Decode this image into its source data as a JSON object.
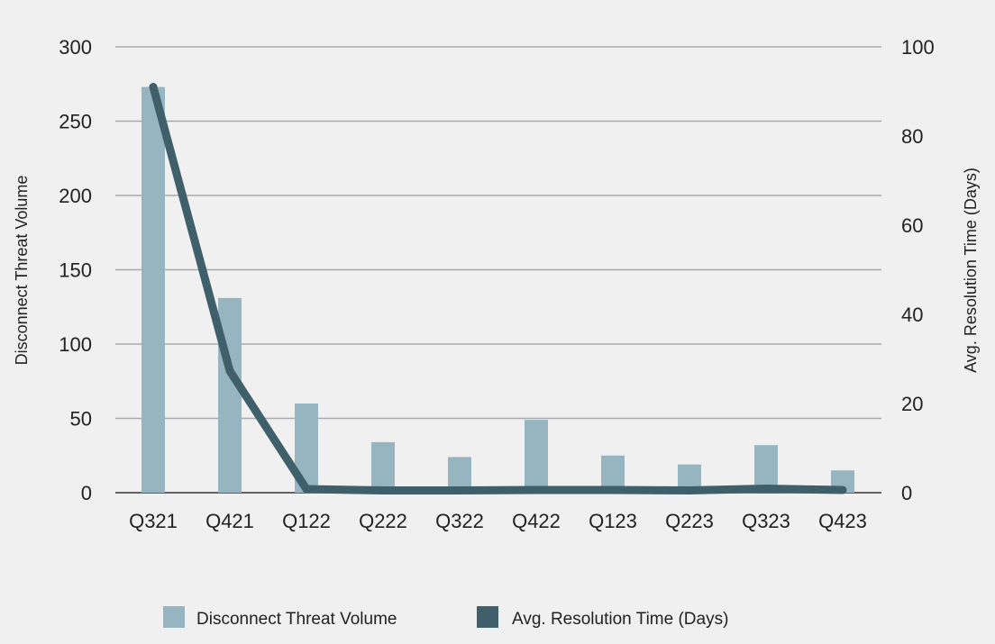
{
  "chart_data": {
    "type": "bar+line",
    "categories": [
      "Q321",
      "Q421",
      "Q122",
      "Q222",
      "Q322",
      "Q422",
      "Q123",
      "Q223",
      "Q323",
      "Q423"
    ],
    "series": [
      {
        "name": "Disconnect Threat Volume",
        "type": "bar",
        "axis": "left",
        "color": "#97b5c0",
        "values": [
          273,
          131,
          60,
          34,
          24,
          49,
          25,
          19,
          32,
          15
        ]
      },
      {
        "name": "Avg. Resolution Time (Days)",
        "type": "line",
        "axis": "right",
        "color": "#3f5f6a",
        "values": [
          91,
          27.3,
          0.8,
          0.5,
          0.5,
          0.6,
          0.6,
          0.5,
          0.9,
          0.6
        ]
      }
    ],
    "ylabel": "Disconnect Threat Volume",
    "y2label": "Avg. Resolution Time (Days)",
    "ylim": [
      0,
      300
    ],
    "y2lim": [
      0,
      100
    ],
    "yticks": [
      0,
      50,
      100,
      150,
      200,
      250,
      300
    ],
    "y2ticks": [
      0,
      20,
      40,
      60,
      80,
      100
    ],
    "grid": true,
    "legend": "bottom"
  }
}
